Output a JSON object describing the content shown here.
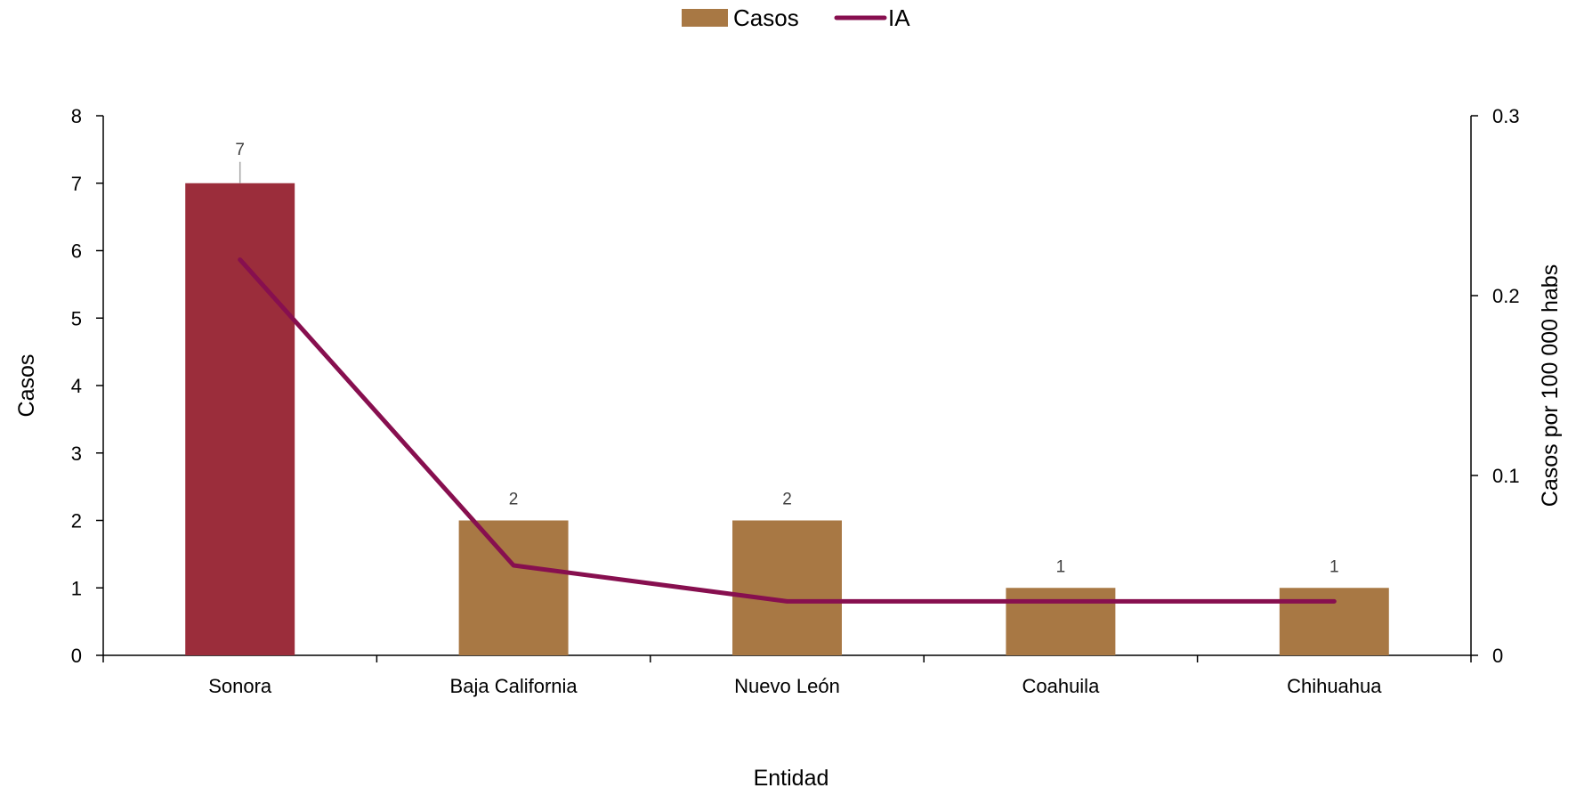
{
  "chart_data": {
    "type": "bar",
    "categories": [
      "Sonora",
      "Baja California",
      "Nuevo León",
      "Coahuila",
      "Chihuahua"
    ],
    "series": [
      {
        "name": "Casos",
        "type": "bar",
        "axis": "left",
        "values": [
          7,
          2,
          2,
          1,
          1
        ],
        "data_labels": [
          "7",
          "2",
          "2",
          "1",
          "1"
        ],
        "color": "#A87844",
        "highlight_color": "#9B2D3B",
        "highlight_index": 0
      },
      {
        "name": "IA",
        "type": "line",
        "axis": "right",
        "values": [
          0.22,
          0.05,
          0.03,
          0.03,
          0.03
        ],
        "color": "#870F4F"
      }
    ],
    "xlabel": "Entidad",
    "ylabel": "Casos",
    "y2label": "Casos por 100 000 habs",
    "ylim": [
      0,
      8
    ],
    "y2lim": [
      0,
      0.3
    ],
    "yticks": [
      "0",
      "1",
      "2",
      "3",
      "4",
      "5",
      "6",
      "7",
      "8"
    ],
    "y2ticks": [
      "0",
      "0.1",
      "0.2",
      "0.3"
    ],
    "legend_position": "top-center",
    "grid": false
  }
}
